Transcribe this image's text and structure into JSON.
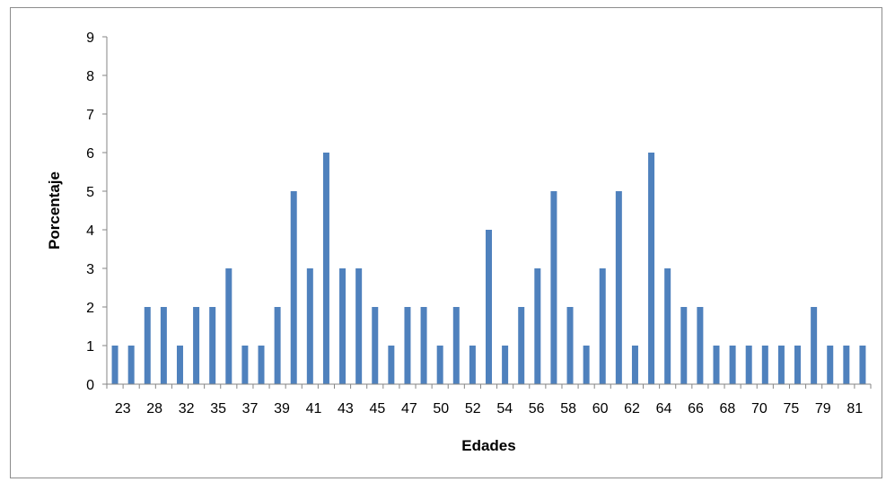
{
  "chart_data": {
    "type": "bar",
    "title": "",
    "xlabel": "Edades",
    "ylabel": "Porcentaje",
    "ylim": [
      0,
      9
    ],
    "yticks": [
      0,
      1,
      2,
      3,
      4,
      5,
      6,
      7,
      8,
      9
    ],
    "grid": false,
    "legend": "none",
    "bar_color": "#4f81bd",
    "x_tick_labels": [
      "23",
      "28",
      "32",
      "35",
      "37",
      "39",
      "41",
      "43",
      "45",
      "47",
      "50",
      "52",
      "54",
      "56",
      "58",
      "60",
      "62",
      "64",
      "66",
      "68",
      "70",
      "75",
      "79",
      "81"
    ],
    "values": [
      1,
      1,
      2,
      2,
      1,
      2,
      2,
      3,
      1,
      1,
      2,
      5,
      3,
      6,
      3,
      3,
      2,
      1,
      2,
      2,
      1,
      2,
      1,
      4,
      1,
      2,
      3,
      5,
      2,
      1,
      3,
      5,
      1,
      6,
      3,
      2,
      2,
      1,
      1,
      1,
      1,
      1,
      1,
      2,
      1,
      1,
      1
    ]
  }
}
